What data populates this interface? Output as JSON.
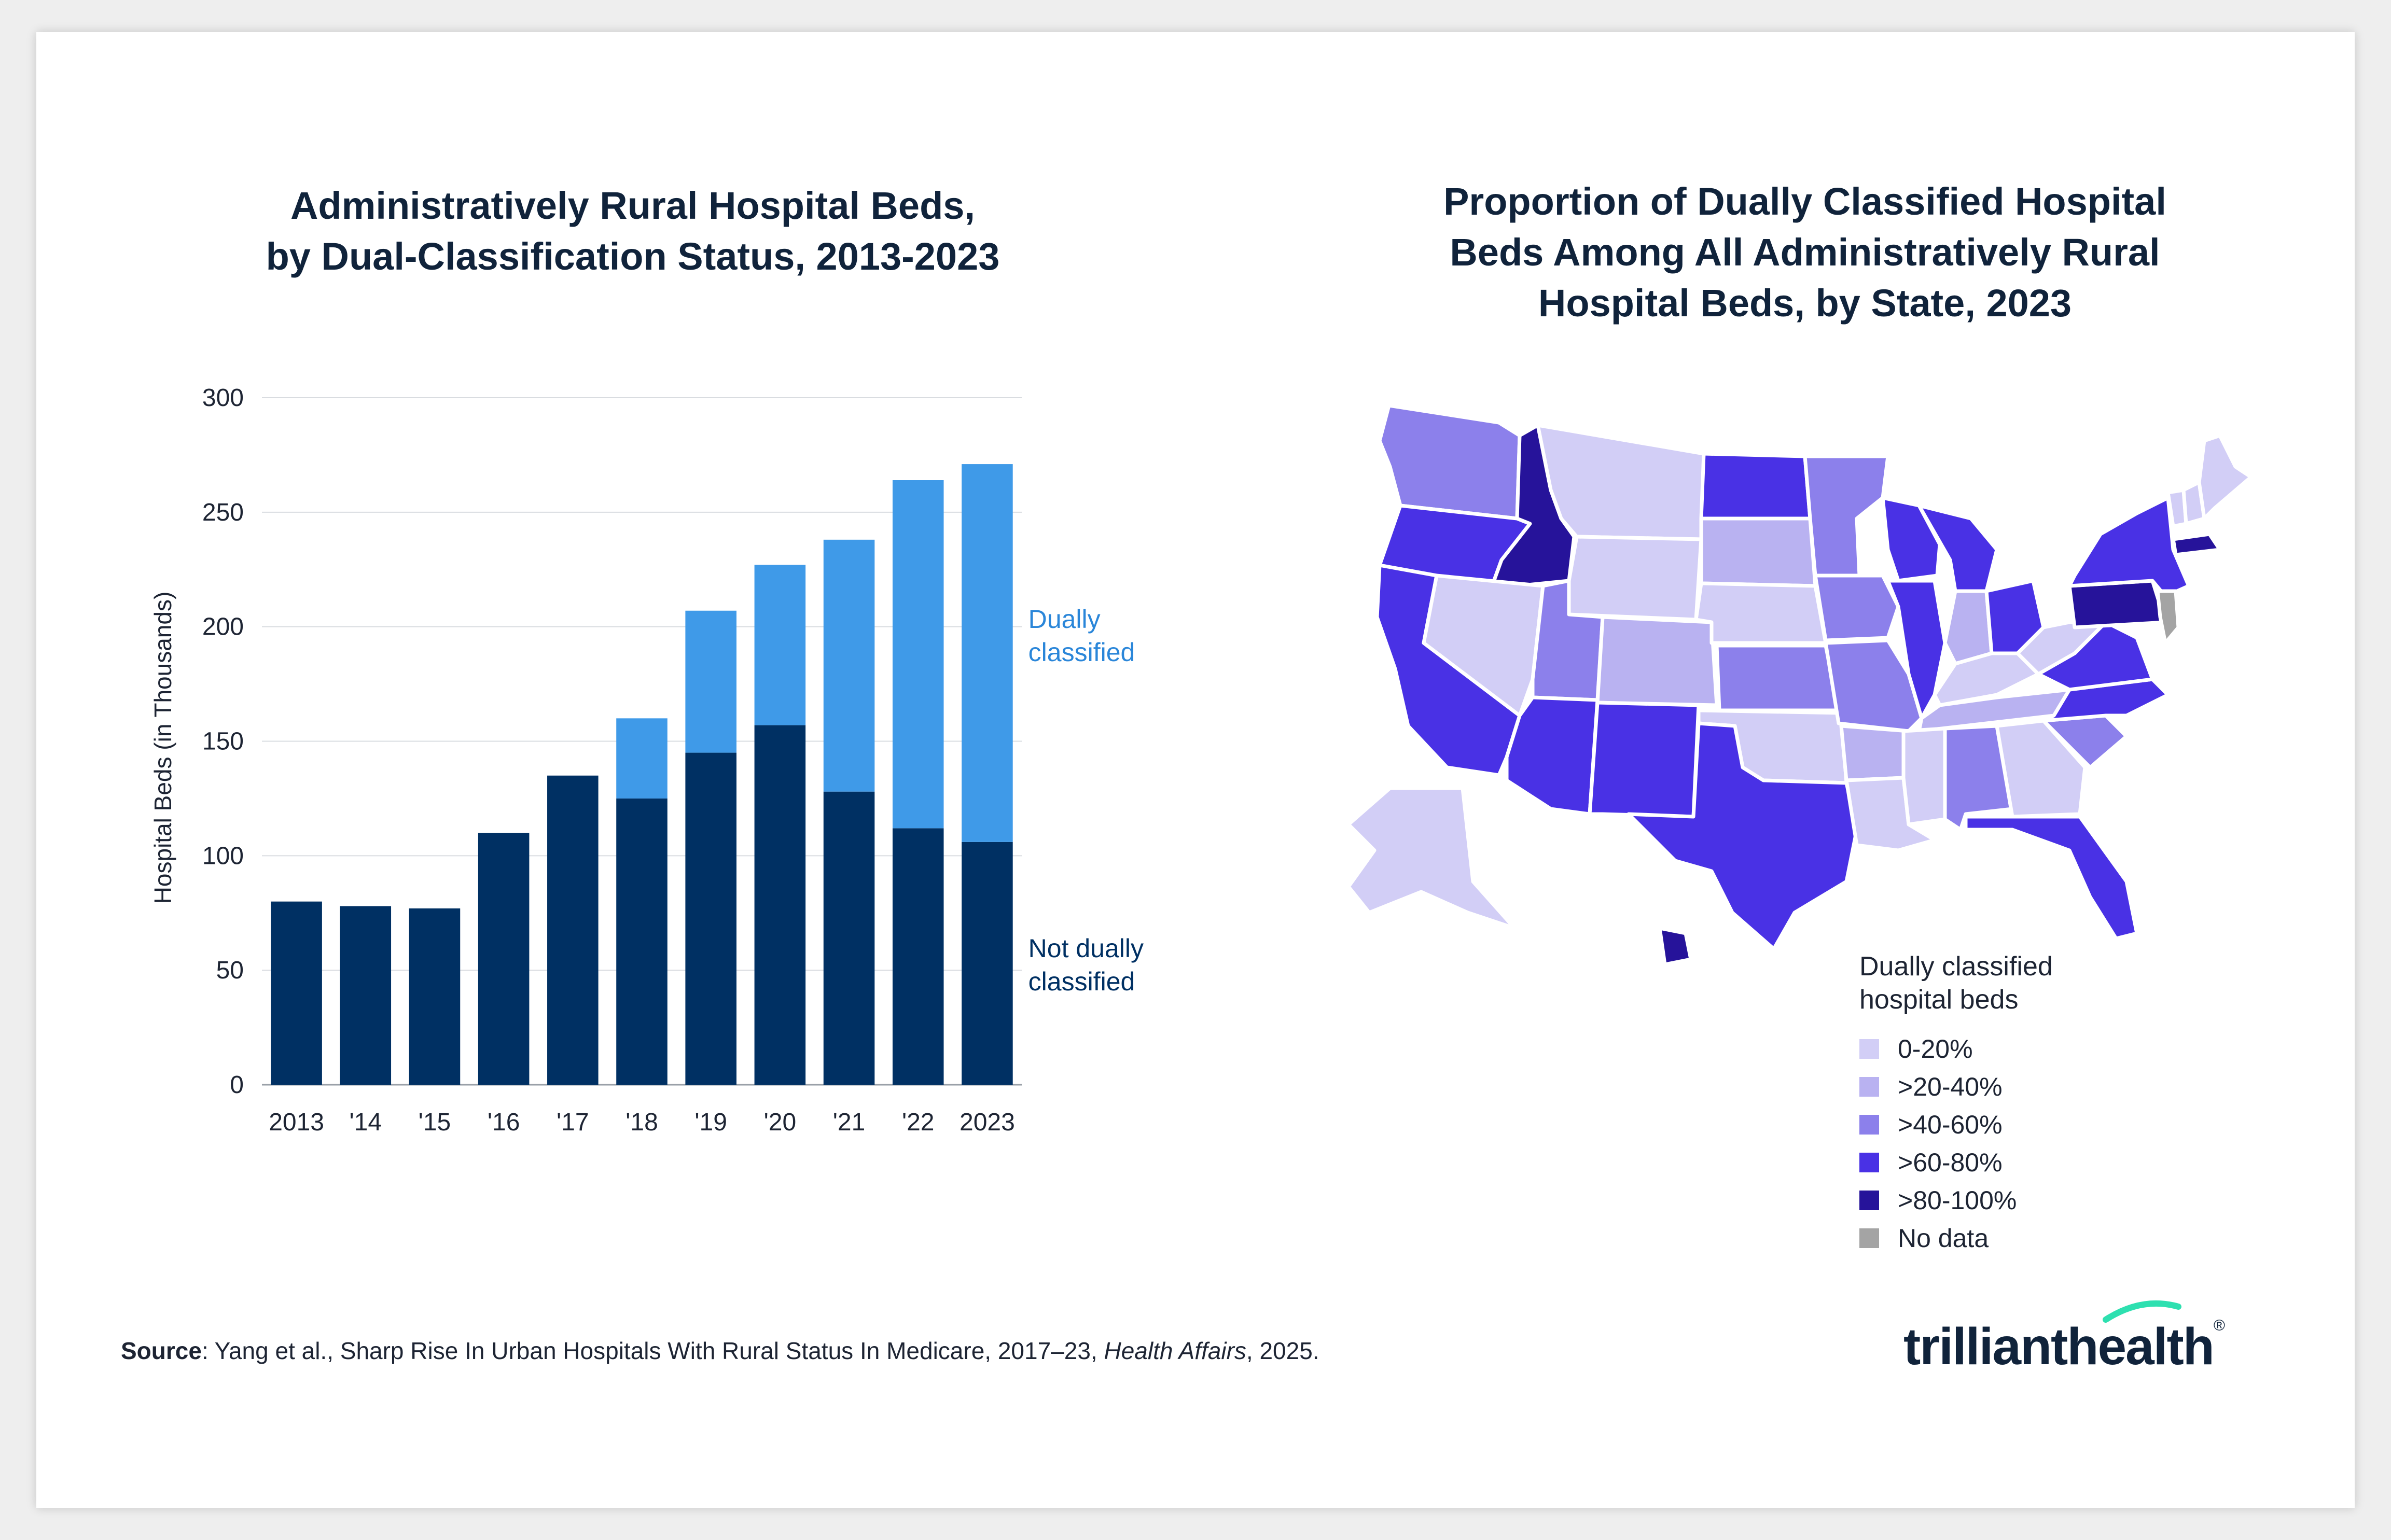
{
  "left_title_1": "Administratively Rural Hospital Beds,",
  "left_title_2": "by Dual-Classification Status, 2013-2023",
  "right_title_1": "Proportion of Dually Classified Hospital",
  "right_title_2": "Beds Among All Administratively Rural",
  "right_title_3": "Hospital Beds, by State, 2023",
  "chart_data": [
    {
      "type": "bar",
      "stacked": true,
      "title": "Administratively Rural Hospital Beds, by Dual-Classification Status, 2013-2023",
      "ylabel": "Hospital Beds (in Thousands)",
      "xlabel": "",
      "ylim": [
        0,
        300
      ],
      "yticks": [
        0,
        50,
        100,
        150,
        200,
        250,
        300
      ],
      "grid": true,
      "categories": [
        "2013",
        "'14",
        "'15",
        "'16",
        "'17",
        "'18",
        "'19",
        "'20",
        "'21",
        "'22",
        "2023"
      ],
      "series": [
        {
          "name": "Not dually classified",
          "color": "#003063",
          "values": [
            80,
            78,
            77,
            110,
            135,
            125,
            145,
            157,
            128,
            112,
            106
          ]
        },
        {
          "name": "Dually classified",
          "color": "#3f9ae8",
          "values": [
            0,
            0,
            0,
            0,
            0,
            35,
            62,
            70,
            110,
            152,
            165
          ]
        }
      ],
      "series_labels": [
        {
          "lines": [
            "Dually",
            "classified"
          ],
          "color": "#2a86d9"
        },
        {
          "lines": [
            "Not dually",
            "classified"
          ],
          "color": "#003063"
        }
      ]
    },
    {
      "type": "choropleth-map",
      "title": "Proportion of Dually Classified Hospital Beds Among All Administratively Rural Hospital Beds, by State, 2023",
      "legend_title": [
        "Dually classified",
        "hospital beds"
      ],
      "legend_position": "bottom-right",
      "bins": [
        {
          "label": "0-20%",
          "color": "#d2cef6",
          "states": [
            "MT",
            "WY",
            "NV",
            "NE",
            "OK",
            "GA",
            "MS",
            "LA",
            "AK",
            "ME",
            "VT",
            "NH",
            "WV",
            "KY"
          ]
        },
        {
          "label": ">20-40%",
          "color": "#b9b2f1",
          "states": [
            "SD",
            "CO",
            "AR",
            "IN",
            "TN"
          ]
        },
        {
          "label": ">40-60%",
          "color": "#8c80eb",
          "states": [
            "WA",
            "UT",
            "MN",
            "IA",
            "KS",
            "MO",
            "AL",
            "SC"
          ]
        },
        {
          "label": ">60-80%",
          "color": "#4931e5",
          "states": [
            "OR",
            "CA",
            "AZ",
            "NM",
            "TX",
            "ND",
            "WI",
            "MI",
            "IL",
            "OH",
            "NY",
            "VA",
            "NC",
            "FL"
          ]
        },
        {
          "label": ">80-100%",
          "color": "#26139a",
          "states": [
            "ID",
            "PA",
            "MA",
            "HI"
          ]
        },
        {
          "label": "No data",
          "color": "#a4a4a4",
          "states": [
            "NJ"
          ]
        }
      ]
    }
  ],
  "source_label": "Source",
  "source_text": ": Yang et al., Sharp Rise In Urban Hospitals With Rural Status In Medicare, 2017–23, ",
  "source_journal": "Health Affairs",
  "source_year": ", 2025.",
  "logo": {
    "part1": "trilliant",
    "part2": "health",
    "mark": "®",
    "accent": "#2ee0b0"
  }
}
